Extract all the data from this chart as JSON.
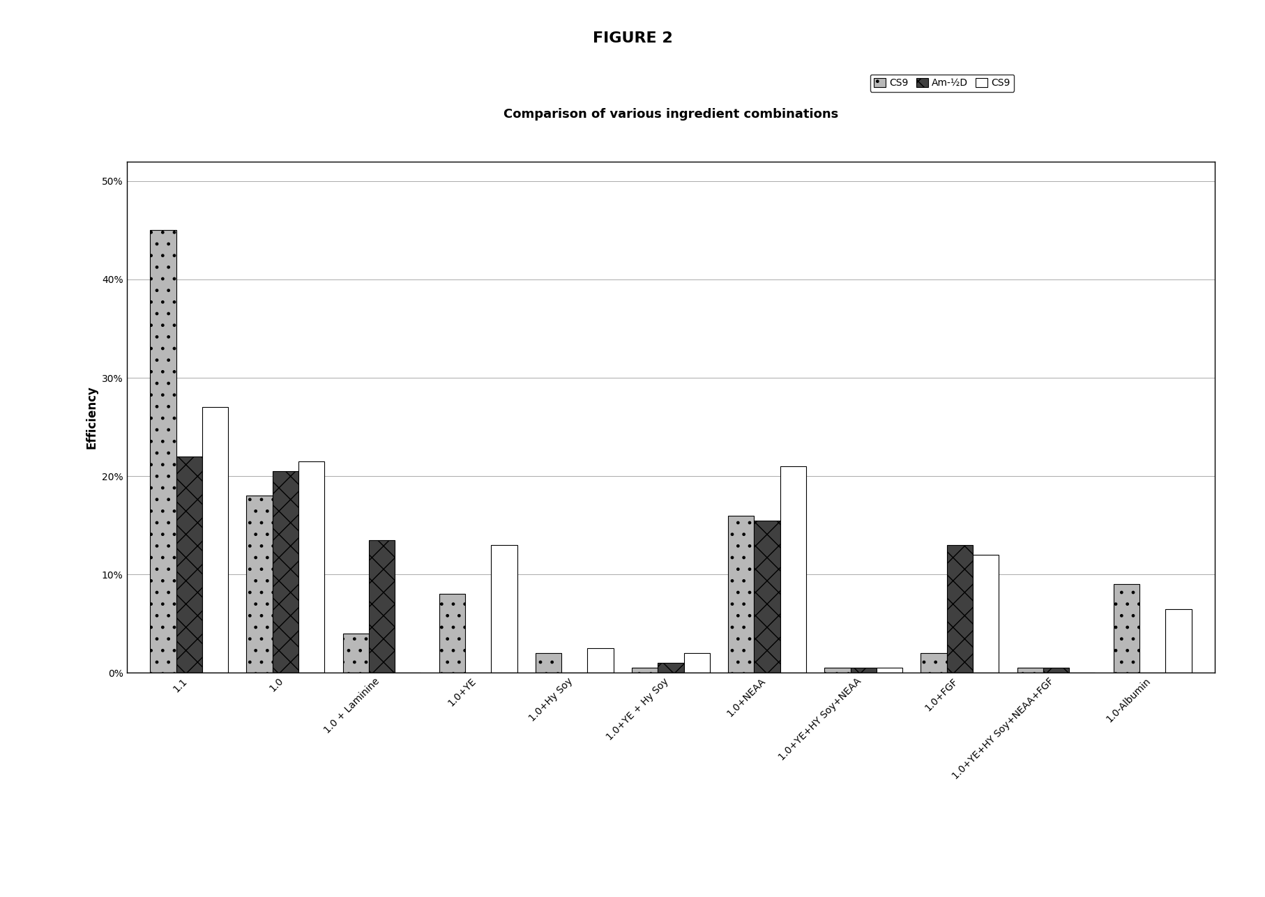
{
  "title": "Comparison of various ingredient combinations",
  "figure_title": "FIGURE 2",
  "ylabel": "Efficiency",
  "categories": [
    "1.1",
    "1.0",
    "1.0 + Laminine",
    "1.0+YE",
    "1.0+Hy Soy",
    "1.0+YE + Hy Soy",
    "1.0+NEAA",
    "1.0+YE+HY Soy+NEAA",
    "1.0+FGF",
    "1.0+YE+HY Soy+NEAA+FGF",
    "1.0-Albumin"
  ],
  "series": {
    "CS9": [
      0.45,
      0.18,
      0.04,
      0.08,
      0.02,
      0.005,
      0.16,
      0.005,
      0.02,
      0.005,
      0.09
    ],
    "Am-VD": [
      0.22,
      0.205,
      0.135,
      0.0,
      0.0,
      0.01,
      0.155,
      0.005,
      0.13,
      0.005,
      0.0
    ],
    "CS9_2": [
      0.27,
      0.215,
      0.0,
      0.13,
      0.025,
      0.02,
      0.21,
      0.005,
      0.12,
      0.0,
      0.065
    ]
  },
  "legend_labels": [
    "CS9",
    "Am-½D",
    "CS9"
  ],
  "bar_colors": [
    "#b8b8b8",
    "#404040",
    "#ffffff"
  ],
  "bar_patterns": [
    ".",
    "x",
    ""
  ],
  "bar_edge_colors": [
    "#000000",
    "#000000",
    "#000000"
  ],
  "ylim": [
    0,
    0.52
  ],
  "yticks": [
    0.0,
    0.1,
    0.2,
    0.3,
    0.4,
    0.5
  ],
  "ytick_labels": [
    "0%",
    "10%",
    "20%",
    "30%",
    "40%",
    "50%"
  ],
  "background_color": "#ffffff",
  "plot_bg_color": "#ffffff",
  "title_fontsize": 13,
  "axis_fontsize": 12,
  "tick_fontsize": 10,
  "legend_fontsize": 10,
  "figure_title_fontsize": 16
}
